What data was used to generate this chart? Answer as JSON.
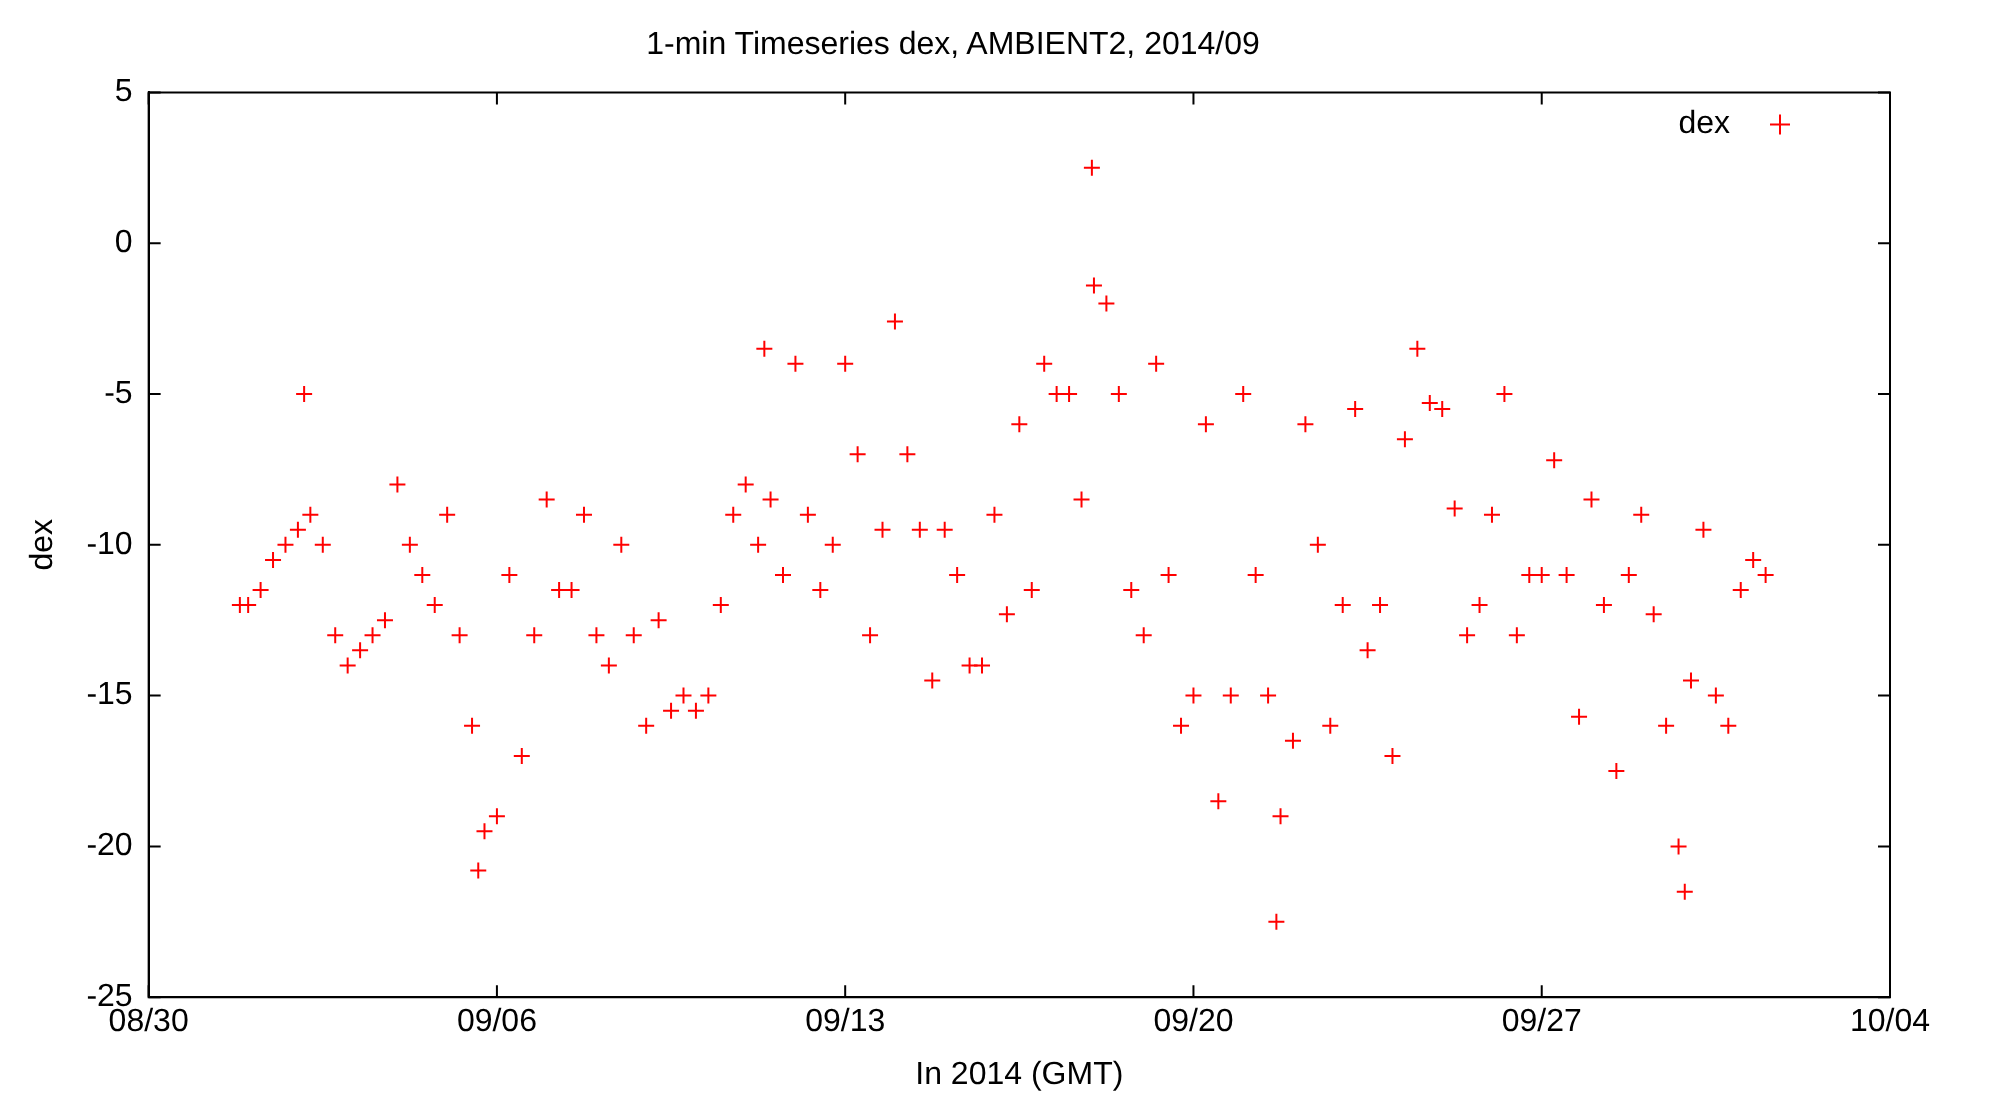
{
  "chart_data": {
    "type": "scatter",
    "title": "1-min Timeseries dex, AMBIENT2, 2014/09",
    "xlabel": "In 2014 (GMT)",
    "ylabel": "dex",
    "xlim": [
      "2014-08-30",
      "2014-10-04"
    ],
    "xticks": [
      {
        "value": "2014-08-30",
        "label": "08/30"
      },
      {
        "value": "2014-09-06",
        "label": "09/06"
      },
      {
        "value": "2014-09-13",
        "label": "09/13"
      },
      {
        "value": "2014-09-20",
        "label": "09/20"
      },
      {
        "value": "2014-09-27",
        "label": "09/27"
      },
      {
        "value": "2014-10-04",
        "label": "10/04"
      }
    ],
    "ylim": [
      -25,
      5
    ],
    "yticks": [
      -25,
      -20,
      -15,
      -10,
      -5,
      0,
      5
    ],
    "grid": false,
    "legend": "top right",
    "marker": "cross",
    "series": [
      {
        "name": "dex",
        "color": "#ff0000",
        "x": [
          "2014-08-31T20:00",
          "2014-09-01T00:00",
          "2014-09-01T06:00",
          "2014-09-01T12:00",
          "2014-09-01T18:00",
          "2014-09-02T00:00",
          "2014-09-02T03:00",
          "2014-09-02T06:00",
          "2014-09-02T12:00",
          "2014-09-02T18:00",
          "2014-09-03T00:00",
          "2014-09-03T06:00",
          "2014-09-03T12:00",
          "2014-09-03T18:00",
          "2014-09-04T00:00",
          "2014-09-04T06:00",
          "2014-09-04T12:00",
          "2014-09-04T18:00",
          "2014-09-05T00:00",
          "2014-09-05T06:00",
          "2014-09-05T12:00",
          "2014-09-05T15:00",
          "2014-09-05T18:00",
          "2014-09-06T00:00",
          "2014-09-06T06:00",
          "2014-09-06T12:00",
          "2014-09-06T18:00",
          "2014-09-07T00:00",
          "2014-09-07T06:00",
          "2014-09-07T12:00",
          "2014-09-07T18:00",
          "2014-09-08T00:00",
          "2014-09-08T06:00",
          "2014-09-08T12:00",
          "2014-09-08T18:00",
          "2014-09-09T00:00",
          "2014-09-09T06:00",
          "2014-09-09T12:00",
          "2014-09-09T18:00",
          "2014-09-10T00:00",
          "2014-09-10T06:00",
          "2014-09-10T12:00",
          "2014-09-10T18:00",
          "2014-09-11T00:00",
          "2014-09-11T06:00",
          "2014-09-11T09:00",
          "2014-09-11T12:00",
          "2014-09-11T18:00",
          "2014-09-12T00:00",
          "2014-09-12T06:00",
          "2014-09-12T12:00",
          "2014-09-12T18:00",
          "2014-09-13T00:00",
          "2014-09-13T06:00",
          "2014-09-13T12:00",
          "2014-09-13T18:00",
          "2014-09-14T00:00",
          "2014-09-14T06:00",
          "2014-09-14T12:00",
          "2014-09-14T18:00",
          "2014-09-15T00:00",
          "2014-09-15T06:00",
          "2014-09-15T12:00",
          "2014-09-15T18:00",
          "2014-09-16T00:00",
          "2014-09-16T06:00",
          "2014-09-16T12:00",
          "2014-09-16T18:00",
          "2014-09-17T00:00",
          "2014-09-17T06:00",
          "2014-09-17T12:00",
          "2014-09-17T18:00",
          "2014-09-17T23:00",
          "2014-09-18T00:00",
          "2014-09-18T06:00",
          "2014-09-18T12:00",
          "2014-09-18T18:00",
          "2014-09-19T00:00",
          "2014-09-19T06:00",
          "2014-09-19T12:00",
          "2014-09-19T18:00",
          "2014-09-20T00:00",
          "2014-09-20T06:00",
          "2014-09-20T12:00",
          "2014-09-20T18:00",
          "2014-09-21T00:00",
          "2014-09-21T06:00",
          "2014-09-21T12:00",
          "2014-09-21T16:00",
          "2014-09-21T18:00",
          "2014-09-22T00:00",
          "2014-09-22T06:00",
          "2014-09-22T12:00",
          "2014-09-22T18:00",
          "2014-09-23T00:00",
          "2014-09-23T06:00",
          "2014-09-23T12:00",
          "2014-09-23T18:00",
          "2014-09-24T00:00",
          "2014-09-24T06:00",
          "2014-09-24T12:00",
          "2014-09-24T18:00",
          "2014-09-25T00:00",
          "2014-09-25T06:00",
          "2014-09-25T12:00",
          "2014-09-25T18:00",
          "2014-09-26T00:00",
          "2014-09-26T06:00",
          "2014-09-26T12:00",
          "2014-09-26T18:00",
          "2014-09-27T00:00",
          "2014-09-27T06:00",
          "2014-09-27T12:00",
          "2014-09-27T18:00",
          "2014-09-28T00:00",
          "2014-09-28T06:00",
          "2014-09-28T12:00",
          "2014-09-28T18:00",
          "2014-09-29T00:00",
          "2014-09-29T06:00",
          "2014-09-29T12:00",
          "2014-09-29T18:00",
          "2014-09-29T21:00",
          "2014-09-30T00:00",
          "2014-09-30T06:00",
          "2014-09-30T12:00",
          "2014-09-30T18:00",
          "2014-10-01T00:00",
          "2014-10-01T06:00",
          "2014-10-01T12:00"
        ],
        "values": [
          -12,
          -12,
          -11.5,
          -10.5,
          -10,
          -9.5,
          -5,
          -9,
          -10,
          -13,
          -14,
          -13.5,
          -13,
          -12.5,
          -8,
          -10,
          -11,
          -12,
          -9,
          -13,
          -16,
          -20.8,
          -19.5,
          -19,
          -11,
          -17,
          -13,
          -8.5,
          -11.5,
          -11.5,
          -9,
          -13,
          -14,
          -10,
          -13,
          -16,
          -12.5,
          -15.5,
          -15,
          -15.5,
          -15,
          -12,
          -9,
          -8,
          -10,
          -3.5,
          -8.5,
          -11,
          -4,
          -9,
          -11.5,
          -10,
          -4,
          -7,
          -13,
          -9.5,
          -2.6,
          -7,
          -9.5,
          -14.5,
          -9.5,
          -11,
          -14,
          -14,
          -9,
          -12.3,
          -6,
          -11.5,
          -4,
          -5,
          -5,
          -8.5,
          2.5,
          -1.4,
          -2,
          -5,
          -11.5,
          -13,
          -4,
          -11,
          -16,
          -15,
          -6,
          -18.5,
          -15,
          -5,
          -11,
          -15,
          -22.5,
          -19,
          -16.5,
          -6,
          -10,
          -16,
          -12,
          -5.5,
          -13.5,
          -12,
          -17,
          -6.5,
          -3.5,
          -5.3,
          -5.5,
          -8.8,
          -13,
          -12,
          -9,
          -5,
          -13,
          -11,
          -11,
          -7.2,
          -11,
          -15.7,
          -8.5,
          -12,
          -17.5,
          -11,
          -9,
          -12.3,
          -16,
          -20,
          -21.5,
          -14.5,
          -9.5,
          -15,
          -16,
          -11.5,
          -10.5,
          -11
        ]
      }
    ]
  }
}
